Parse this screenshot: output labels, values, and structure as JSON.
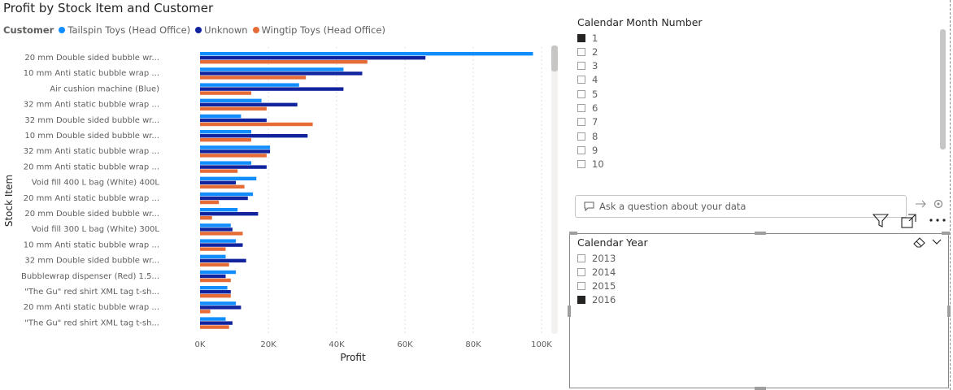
{
  "chart_data": {
    "type": "bar",
    "orientation": "horizontal",
    "title": "Profit by Stock Item and Customer",
    "legend_title": "Customer",
    "xlabel": "Profit",
    "ylabel": "Stock Item",
    "xlim": [
      0,
      100000
    ],
    "x_ticks": [
      "0K",
      "20K",
      "40K",
      "60K",
      "80K",
      "100K"
    ],
    "grid": true,
    "categories": [
      "20 mm Double sided bubble wr...",
      "10 mm Anti static bubble wrap ...",
      "Air cushion machine (Blue)",
      "32 mm Anti static bubble wrap ...",
      "32 mm Double sided bubble wr...",
      "10 mm Double sided bubble wr...",
      "32 mm Anti static bubble wrap ...",
      "20 mm Anti static bubble wrap ...",
      "Void fill 400 L bag (White) 400L",
      "20 mm Anti static bubble wrap ...",
      "20 mm Double sided bubble wr...",
      "Void fill 300 L bag (White) 300L",
      "10 mm Anti static bubble wrap ...",
      "32 mm Double sided bubble wr...",
      "Bubblewrap dispenser (Red) 1.5...",
      "\"The Gu\" red shirt XML tag t-sh...",
      "20 mm Anti static bubble wrap ...",
      "\"The Gu\" red shirt XML tag t-sh..."
    ],
    "series": [
      {
        "name": "Tailspin Toys (Head Office)",
        "color": "#118dff",
        "values": [
          97500,
          42000,
          29000,
          18000,
          12000,
          15000,
          20500,
          15000,
          16500,
          15500,
          11000,
          9000,
          10500,
          7500,
          10500,
          8000,
          10500,
          7500
        ]
      },
      {
        "name": "Unknown",
        "color": "#12239e",
        "values": [
          66000,
          47500,
          42000,
          28500,
          19500,
          31500,
          20500,
          19500,
          10500,
          14000,
          17000,
          9500,
          12500,
          13500,
          7500,
          9000,
          12000,
          9500
        ]
      },
      {
        "name": "Wingtip Toys (Head Office)",
        "color": "#e66c37",
        "values": [
          49000,
          31000,
          15000,
          19500,
          33000,
          15000,
          19500,
          11000,
          13000,
          5500,
          3500,
          12500,
          7500,
          8500,
          9000,
          9000,
          3000,
          8500
        ]
      }
    ]
  },
  "month_slicer": {
    "title": "Calendar Month Number",
    "items": [
      {
        "label": "1",
        "checked": true
      },
      {
        "label": "2",
        "checked": false
      },
      {
        "label": "3",
        "checked": false
      },
      {
        "label": "4",
        "checked": false
      },
      {
        "label": "5",
        "checked": false
      },
      {
        "label": "6",
        "checked": false
      },
      {
        "label": "7",
        "checked": false
      },
      {
        "label": "8",
        "checked": false
      },
      {
        "label": "9",
        "checked": false
      },
      {
        "label": "10",
        "checked": false
      }
    ]
  },
  "qa": {
    "placeholder": "Ask a question about your data"
  },
  "year_slicer": {
    "title": "Calendar Year",
    "items": [
      {
        "label": "2013",
        "checked": false
      },
      {
        "label": "2014",
        "checked": false
      },
      {
        "label": "2015",
        "checked": false
      },
      {
        "label": "2016",
        "checked": true
      }
    ]
  },
  "icons": {
    "filter": "filter-icon",
    "focus": "focus-mode-icon",
    "more": "more-options-icon",
    "eraser": "eraser-icon",
    "chevron": "chevron-down-icon",
    "chat": "chat-bubble-icon"
  }
}
